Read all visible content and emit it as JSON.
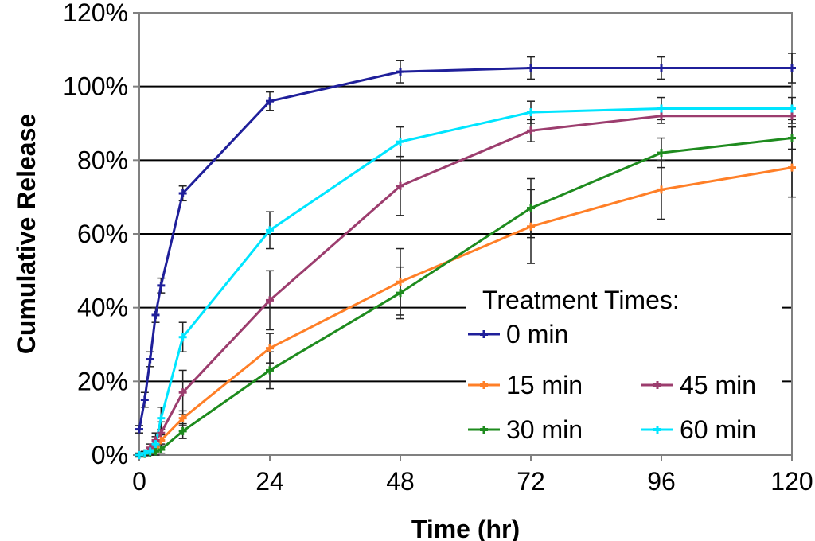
{
  "chart_data": {
    "type": "line",
    "title": "",
    "xlabel": "Time (hr)",
    "ylabel": "Cumulative Release",
    "xlim": [
      0,
      120
    ],
    "ylim": [
      0,
      120
    ],
    "x_ticks": [
      0,
      24,
      48,
      72,
      96,
      120
    ],
    "x_tick_labels": [
      "0",
      "24",
      "48",
      "72",
      "96",
      "120"
    ],
    "y_ticks": [
      0,
      20,
      40,
      60,
      80,
      100,
      120
    ],
    "y_tick_labels": [
      "0%",
      "20%",
      "40%",
      "60%",
      "80%",
      "100%",
      "120%"
    ],
    "gridlines_y": [
      20,
      40,
      60,
      80,
      100
    ],
    "legend_title": "Treatment Times:",
    "legend_position": "bottom-right",
    "series": [
      {
        "name": "0 min",
        "color": "#1F1F9A",
        "x": [
          0,
          1,
          2,
          3,
          4,
          8,
          24,
          48,
          72,
          96,
          120
        ],
        "y": [
          7,
          15,
          26,
          38,
          46,
          71,
          96,
          104,
          105,
          105,
          105
        ],
        "err": [
          1,
          2,
          2,
          2,
          2,
          2,
          2.5,
          3,
          3,
          3,
          4
        ]
      },
      {
        "name": "15 min",
        "color": "#FF7F27",
        "x": [
          0,
          1,
          2,
          3,
          4,
          8,
          24,
          48,
          72,
          96,
          120
        ],
        "y": [
          0,
          0.5,
          1,
          2,
          4,
          10,
          29,
          47,
          62,
          72,
          78
        ],
        "err": [
          0.5,
          0.5,
          1,
          1,
          1.5,
          2,
          4,
          9,
          10,
          8,
          8
        ]
      },
      {
        "name": "30 min",
        "color": "#1E8B1E",
        "x": [
          0,
          1,
          2,
          3,
          4,
          8,
          24,
          48,
          72,
          96,
          120
        ],
        "y": [
          0,
          0.3,
          0.6,
          1,
          1.5,
          6.5,
          23,
          44,
          67,
          82,
          86
        ],
        "err": [
          0.5,
          0.5,
          0.5,
          1,
          1,
          2,
          5,
          7,
          8,
          4,
          3
        ]
      },
      {
        "name": "45 min",
        "color": "#9C3D6E",
        "x": [
          0,
          1,
          2,
          3,
          4,
          8,
          24,
          48,
          72,
          96,
          120
        ],
        "y": [
          0,
          0.5,
          2,
          4,
          6,
          17,
          42,
          73,
          88,
          92,
          92
        ],
        "err": [
          0.5,
          0.5,
          1,
          2,
          3,
          6,
          8,
          8,
          3,
          2,
          2
        ]
      },
      {
        "name": "60 min",
        "color": "#00E5FF",
        "x": [
          0,
          1,
          2,
          3,
          4,
          8,
          24,
          48,
          72,
          96,
          120
        ],
        "y": [
          0,
          0.5,
          1,
          3,
          10,
          32,
          61,
          85,
          93,
          94,
          94
        ],
        "err": [
          0.5,
          0.5,
          1,
          2,
          3,
          4,
          5,
          4,
          3,
          3,
          3
        ]
      }
    ]
  }
}
